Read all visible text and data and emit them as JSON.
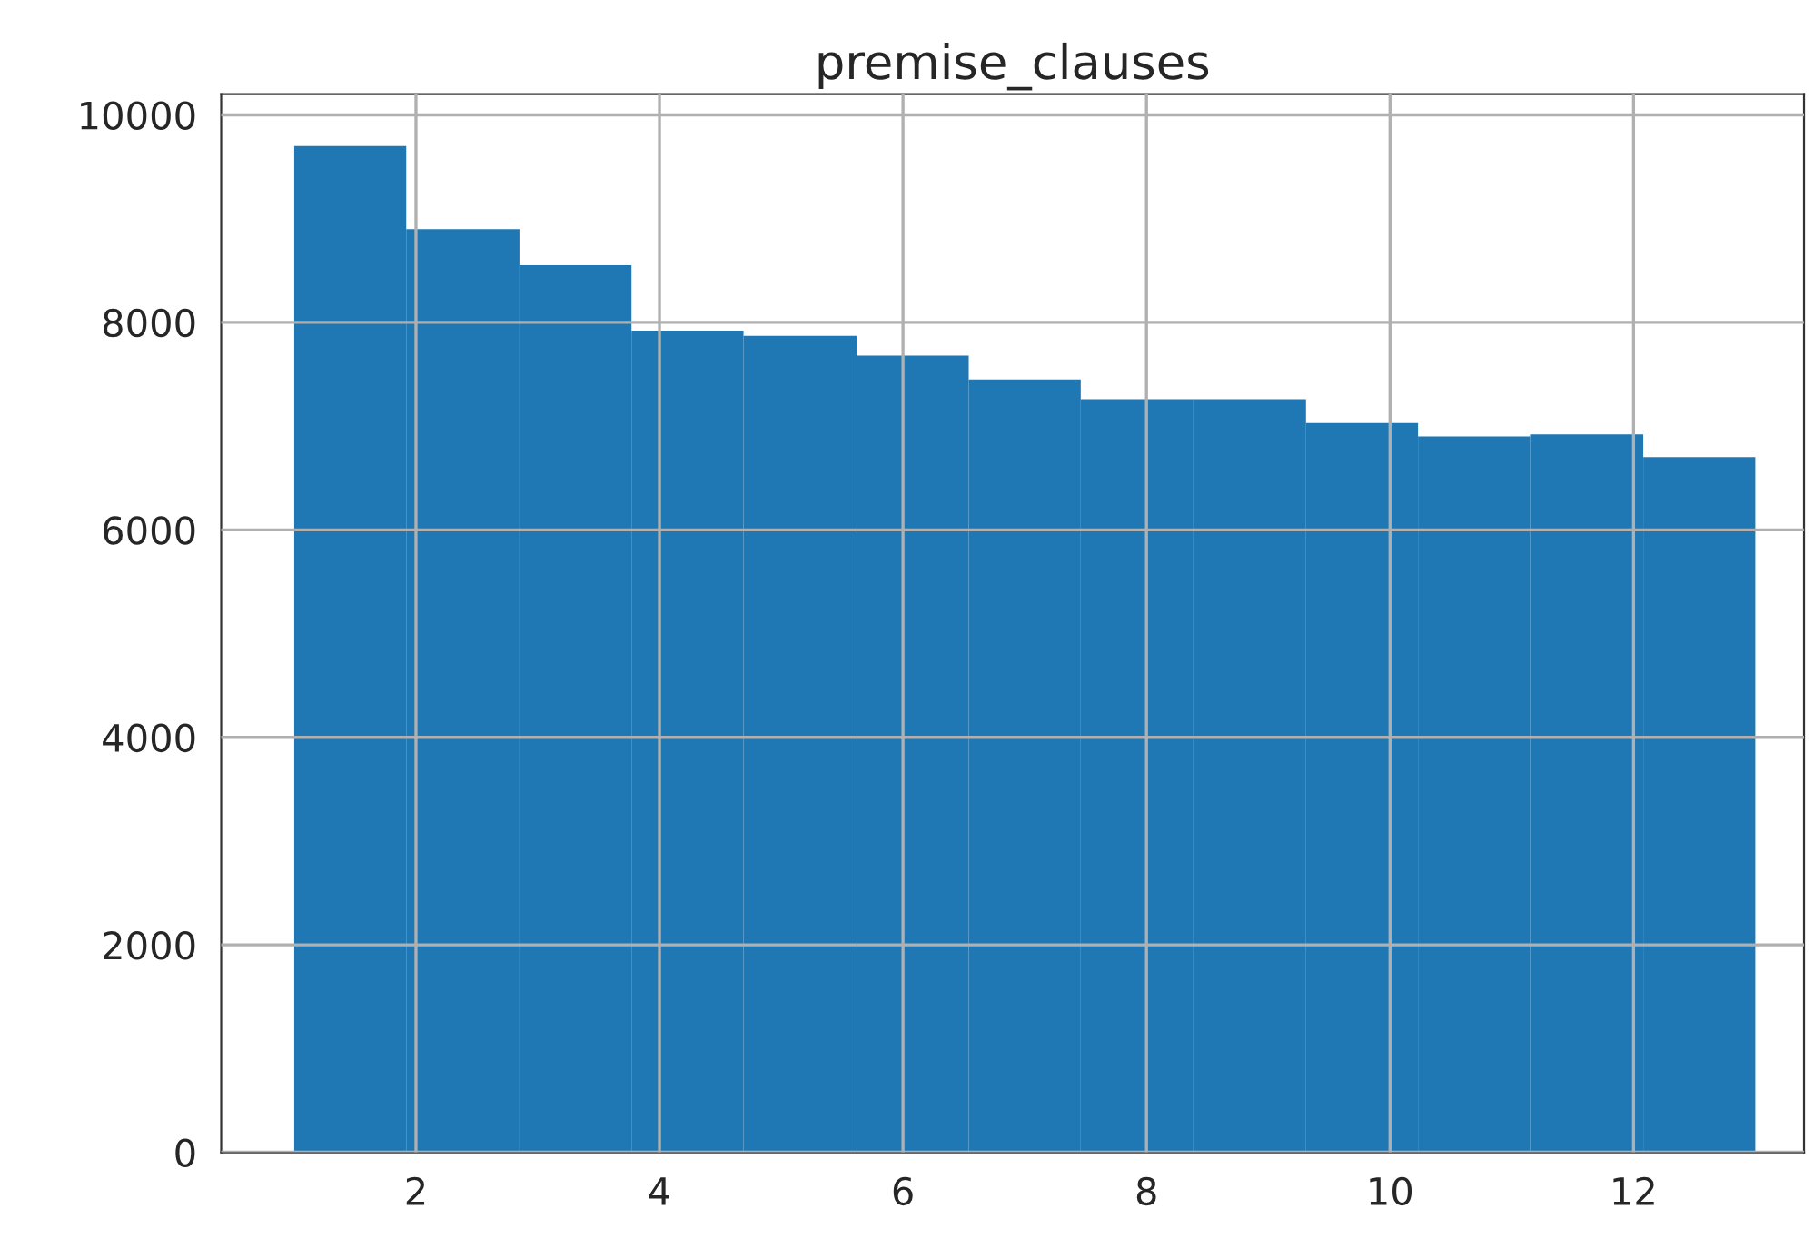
{
  "chart_data": {
    "type": "histogram",
    "title": "premise_clauses",
    "bins": [
      1,
      1.92,
      2.85,
      3.77,
      4.69,
      5.62,
      6.54,
      7.46,
      8.38,
      9.31,
      10.23,
      11.15,
      12.08,
      13
    ],
    "values": [
      9700,
      8900,
      8550,
      7920,
      7870,
      7680,
      7450,
      7260,
      7260,
      7030,
      6900,
      6920,
      6700
    ],
    "color": "#1f77b4",
    "xlim": [
      0.4,
      13.4
    ],
    "xticks": [
      2,
      4,
      6,
      8,
      10,
      12
    ],
    "ylim": [
      0,
      10200
    ],
    "yticks": [
      0,
      2000,
      4000,
      6000,
      8000,
      10000
    ],
    "grid": true
  }
}
